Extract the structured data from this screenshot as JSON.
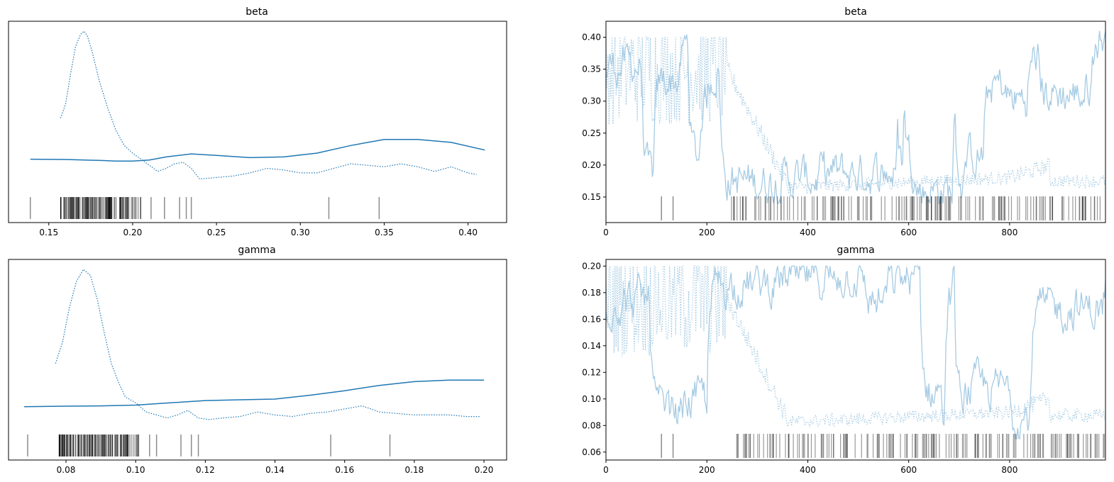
{
  "chart_data": [
    {
      "type": "line",
      "panel": "density",
      "title": "beta",
      "xlabel": "",
      "ylabel": "",
      "xlim": [
        0.126,
        0.423
      ],
      "xticks": [
        "0.15",
        "0.20",
        "0.25",
        "0.30",
        "0.35",
        "0.40"
      ],
      "series": [
        {
          "style": "solid",
          "x": [
            0.139,
            0.16,
            0.18,
            0.19,
            0.2,
            0.21,
            0.22,
            0.235,
            0.25,
            0.27,
            0.29,
            0.31,
            0.33,
            0.35,
            0.37,
            0.39,
            0.41
          ],
          "y": [
            0.16,
            0.158,
            0.152,
            0.148,
            0.148,
            0.155,
            0.175,
            0.195,
            0.185,
            0.17,
            0.175,
            0.2,
            0.25,
            0.29,
            0.29,
            0.27,
            0.22
          ]
        },
        {
          "style": "dotted",
          "x": [
            0.157,
            0.16,
            0.163,
            0.166,
            0.169,
            0.171,
            0.173,
            0.176,
            0.18,
            0.185,
            0.19,
            0.195,
            0.2,
            0.205,
            0.21,
            0.215,
            0.22,
            0.225,
            0.23,
            0.235,
            0.24,
            0.25,
            0.26,
            0.27,
            0.28,
            0.29,
            0.3,
            0.31,
            0.32,
            0.33,
            0.34,
            0.35,
            0.36,
            0.37,
            0.38,
            0.39,
            0.4,
            0.405
          ],
          "y": [
            0.43,
            0.52,
            0.72,
            0.9,
            0.98,
            1.0,
            0.97,
            0.86,
            0.68,
            0.5,
            0.35,
            0.25,
            0.2,
            0.16,
            0.12,
            0.08,
            0.1,
            0.13,
            0.14,
            0.1,
            0.03,
            0.04,
            0.05,
            0.07,
            0.1,
            0.09,
            0.07,
            0.07,
            0.1,
            0.13,
            0.12,
            0.11,
            0.13,
            0.11,
            0.08,
            0.11,
            0.07,
            0.06
          ]
        }
      ],
      "rug": {
        "dense_range": [
          0.157,
          0.205
        ],
        "sparse": [
          0.139,
          0.211,
          0.219,
          0.228,
          0.232,
          0.235,
          0.317,
          0.347
        ]
      }
    },
    {
      "type": "line",
      "panel": "trace",
      "title": "beta",
      "xlim": [
        0,
        990
      ],
      "ylim": [
        0.11,
        0.425
      ],
      "xticks": [
        "0",
        "200",
        "400",
        "600",
        "800"
      ],
      "yticks": [
        "0.15",
        "0.20",
        "0.25",
        "0.30",
        "0.35",
        "0.40"
      ],
      "series": [
        {
          "style": "solid",
          "range": [
            0.14,
            0.41
          ]
        },
        {
          "style": "dotted",
          "range": [
            0.15,
            0.4
          ]
        }
      ]
    },
    {
      "type": "line",
      "panel": "density",
      "title": "gamma",
      "xlabel": "",
      "ylabel": "",
      "xlim": [
        0.0635,
        0.2065
      ],
      "xticks": [
        "0.08",
        "0.10",
        "0.12",
        "0.14",
        "0.16",
        "0.18",
        "0.20"
      ],
      "series": [
        {
          "style": "solid",
          "x": [
            0.068,
            0.08,
            0.09,
            0.1,
            0.11,
            0.12,
            0.13,
            0.14,
            0.15,
            0.16,
            0.17,
            0.18,
            0.19,
            0.2
          ],
          "y": [
            0.095,
            0.098,
            0.1,
            0.105,
            0.12,
            0.135,
            0.14,
            0.145,
            0.17,
            0.2,
            0.235,
            0.26,
            0.27,
            0.27
          ]
        },
        {
          "style": "dotted",
          "x": [
            0.077,
            0.079,
            0.081,
            0.083,
            0.085,
            0.087,
            0.089,
            0.091,
            0.093,
            0.095,
            0.097,
            0.1,
            0.103,
            0.106,
            0.109,
            0.112,
            0.115,
            0.118,
            0.121,
            0.125,
            0.13,
            0.135,
            0.14,
            0.145,
            0.15,
            0.155,
            0.16,
            0.165,
            0.17,
            0.175,
            0.18,
            0.185,
            0.19,
            0.195,
            0.199
          ],
          "y": [
            0.38,
            0.52,
            0.75,
            0.92,
            1.0,
            0.96,
            0.8,
            0.58,
            0.38,
            0.26,
            0.16,
            0.12,
            0.06,
            0.04,
            0.02,
            0.04,
            0.07,
            0.02,
            0.01,
            0.02,
            0.03,
            0.06,
            0.04,
            0.03,
            0.05,
            0.06,
            0.08,
            0.1,
            0.06,
            0.05,
            0.04,
            0.04,
            0.04,
            0.03,
            0.03
          ]
        }
      ],
      "rug": {
        "dense_range": [
          0.078,
          0.101
        ],
        "sparse": [
          0.069,
          0.104,
          0.106,
          0.113,
          0.116,
          0.118,
          0.156,
          0.173
        ]
      }
    },
    {
      "type": "line",
      "panel": "trace",
      "title": "gamma",
      "xlim": [
        0,
        990
      ],
      "ylim": [
        0.054,
        0.205
      ],
      "xticks": [
        "0",
        "200",
        "400",
        "600",
        "800"
      ],
      "yticks": [
        "0.06",
        "0.08",
        "0.10",
        "0.12",
        "0.14",
        "0.16",
        "0.18",
        "0.20"
      ],
      "series": [
        {
          "style": "solid",
          "range": [
            0.07,
            0.2
          ]
        },
        {
          "style": "dotted",
          "range": [
            0.075,
            0.2
          ]
        }
      ]
    }
  ],
  "colors": {
    "line": "#1f77b4",
    "trace": "#a6cbe3",
    "rug": "#000000",
    "axis": "#000000"
  }
}
